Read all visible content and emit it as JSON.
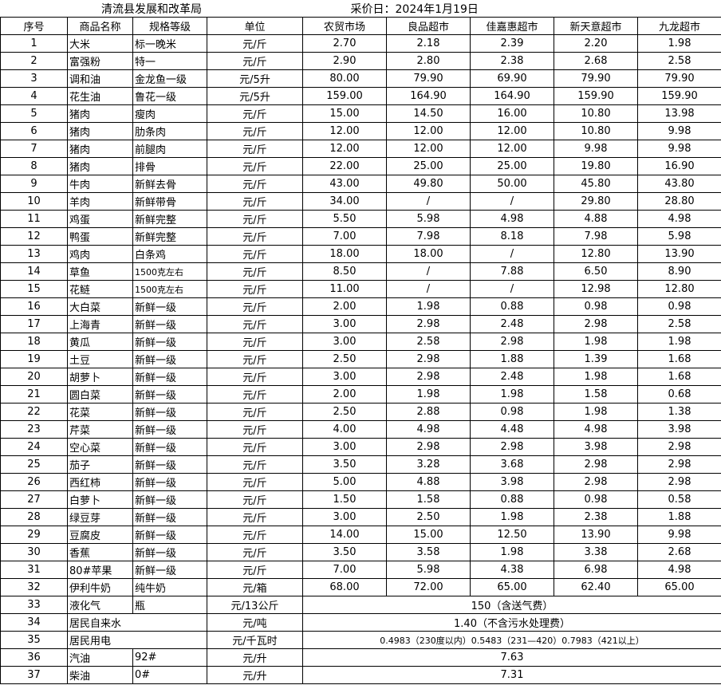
{
  "title": "清流县发展和改革局",
  "date": "采价日：2024年1月19日",
  "headers": [
    "序号",
    "商品名称",
    "规格等级",
    "单位",
    "农贸市场",
    "良品超市",
    "佳嘉惠超市",
    "新天意超市",
    "九龙超市"
  ],
  "rows": [
    [
      "1",
      "大米",
      "标一晚米",
      "元/斤",
      "2.70",
      "2.18",
      "2.39",
      "2.20",
      "1.98"
    ],
    [
      "2",
      "富强粉",
      "特一",
      "元/斤",
      "2.90",
      "2.80",
      "2.38",
      "2.68",
      "2.58"
    ],
    [
      "3",
      "调和油",
      "金龙鱼一级",
      "元/5升",
      "80.00",
      "79.90",
      "69.90",
      "79.90",
      "79.90"
    ],
    [
      "4",
      "花生油",
      "鲁花一级",
      "元/5升",
      "159.00",
      "164.90",
      "164.90",
      "159.90",
      "159.90"
    ],
    [
      "5",
      "猪肉",
      "瘦肉",
      "元/斤",
      "15.00",
      "14.50",
      "16.00",
      "10.80",
      "13.98"
    ],
    [
      "6",
      "猪肉",
      "肋条肉",
      "元/斤",
      "12.00",
      "12.00",
      "12.00",
      "10.80",
      "9.98"
    ],
    [
      "7",
      "猪肉",
      "前腿肉",
      "元/斤",
      "12.00",
      "12.00",
      "12.00",
      "9.98",
      "9.98"
    ],
    [
      "8",
      "猪肉",
      "排骨",
      "元/斤",
      "22.00",
      "25.00",
      "25.00",
      "19.80",
      "16.90"
    ],
    [
      "9",
      "牛肉",
      "新鲜去骨",
      "元/斤",
      "43.00",
      "49.80",
      "50.00",
      "45.80",
      "43.80"
    ],
    [
      "10",
      "羊肉",
      "新鲜带骨",
      "元/斤",
      "34.00",
      "/",
      "/",
      "29.80",
      "28.80"
    ],
    [
      "11",
      "鸡蛋",
      "新鲜完整",
      "元/斤",
      "5.50",
      "5.98",
      "4.98",
      "4.88",
      "4.98"
    ],
    [
      "12",
      "鸭蛋",
      "新鲜完整",
      "元/斤",
      "7.00",
      "7.98",
      "8.18",
      "7.98",
      "5.98"
    ],
    [
      "13",
      "鸡肉",
      "白条鸡",
      "元/斤",
      "18.00",
      "18.00",
      "/",
      "12.80",
      "13.90"
    ],
    [
      "14",
      "草鱼",
      "1500克左右",
      "元/斤",
      "8.50",
      "/",
      "7.88",
      "6.50",
      "8.90"
    ],
    [
      "15",
      "花鲢",
      "1500克左右",
      "元/斤",
      "11.00",
      "/",
      "/",
      "12.98",
      "12.80"
    ],
    [
      "16",
      "大白菜",
      "新鲜一级",
      "元/斤",
      "2.00",
      "1.98",
      "0.88",
      "0.98",
      "0.98"
    ],
    [
      "17",
      "上海青",
      "新鲜一级",
      "元/斤",
      "3.00",
      "2.98",
      "2.48",
      "2.98",
      "2.58"
    ],
    [
      "18",
      "黄瓜",
      "新鲜一级",
      "元/斤",
      "3.00",
      "2.58",
      "2.98",
      "1.98",
      "1.98"
    ],
    [
      "19",
      "土豆",
      "新鲜一级",
      "元/斤",
      "2.50",
      "2.98",
      "1.88",
      "1.39",
      "1.68"
    ],
    [
      "20",
      "胡萝卜",
      "新鲜一级",
      "元/斤",
      "3.00",
      "2.98",
      "2.48",
      "1.98",
      "1.68"
    ],
    [
      "21",
      "圆白菜",
      "新鲜一级",
      "元/斤",
      "2.00",
      "1.98",
      "1.98",
      "1.58",
      "0.68"
    ],
    [
      "22",
      "花菜",
      "新鲜一级",
      "元/斤",
      "2.50",
      "2.88",
      "0.98",
      "1.98",
      "1.38"
    ],
    [
      "23",
      "芹菜",
      "新鲜一级",
      "元/斤",
      "4.00",
      "4.98",
      "4.48",
      "4.98",
      "3.98"
    ],
    [
      "24",
      "空心菜",
      "新鲜一级",
      "元/斤",
      "3.00",
      "2.98",
      "2.98",
      "3.98",
      "2.98"
    ],
    [
      "25",
      "茄子",
      "新鲜一级",
      "元/斤",
      "3.50",
      "3.28",
      "3.68",
      "2.98",
      "2.98"
    ],
    [
      "26",
      "西红柿",
      "新鲜一级",
      "元/斤",
      "5.00",
      "4.88",
      "3.98",
      "2.98",
      "2.98"
    ],
    [
      "27",
      "白萝卜",
      "新鲜一级",
      "元/斤",
      "1.50",
      "1.58",
      "0.88",
      "0.98",
      "0.58"
    ],
    [
      "28",
      "绿豆芽",
      "新鲜一级",
      "元/斤",
      "3.00",
      "2.50",
      "1.98",
      "2.38",
      "1.88"
    ],
    [
      "29",
      "豆腐皮",
      "新鲜一级",
      "元/斤",
      "14.00",
      "15.00",
      "12.50",
      "13.90",
      "9.98"
    ],
    [
      "30",
      "香蕉",
      "新鲜一级",
      "元/斤",
      "3.50",
      "3.58",
      "1.98",
      "3.38",
      "2.68"
    ],
    [
      "31",
      "80#苹果",
      "新鲜一级",
      "元/斤",
      "7.00",
      "5.98",
      "4.38",
      "6.98",
      "4.98"
    ],
    [
      "32",
      "伊利牛奶",
      "纯牛奶",
      "元/箱",
      "68.00",
      "72.00",
      "65.00",
      "62.40",
      "65.00"
    ]
  ],
  "merged_rows": [
    {
      "no": "33",
      "name": "液化气",
      "spec": "瓶",
      "unit": "元/13公斤",
      "price": "150（含送气费）"
    },
    {
      "no": "34",
      "name": "居民自来水",
      "unit": "元/吨",
      "price": "1.40（不含污水处理费）"
    },
    {
      "no": "35",
      "name": "居民用电",
      "unit": "元/千瓦时",
      "price": "0.4983（230度以内）0.5483（231—420）0.7983（421以上）"
    },
    {
      "no": "36",
      "name": "汽油",
      "spec": "92#",
      "unit": "元/升",
      "price": "7.63"
    },
    {
      "no": "37",
      "name": "柴油",
      "spec": "0#",
      "unit": "元/升",
      "price": "7.31"
    }
  ]
}
